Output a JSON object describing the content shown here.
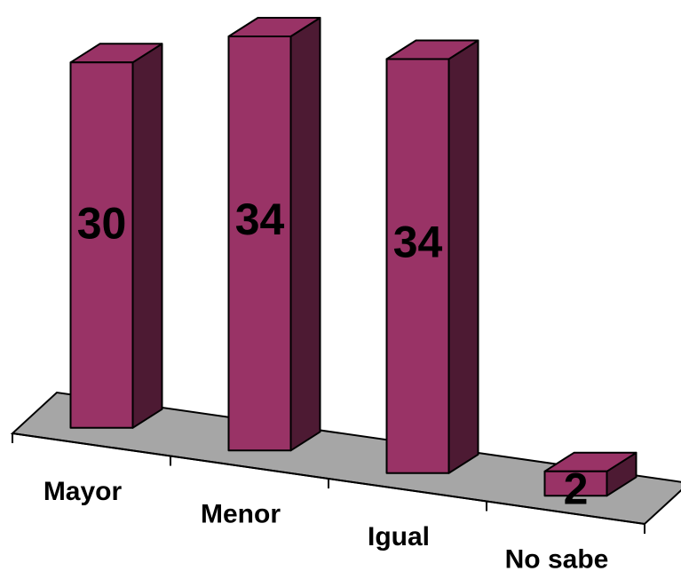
{
  "colors": {
    "bar_front": "#993366",
    "bar_side": "#4d1a33",
    "bar_top": "#993366",
    "floor": "#a6a6a6"
  },
  "chart_data": {
    "type": "bar",
    "categories": [
      "Mayor",
      "Menor",
      "Igual",
      "No sabe"
    ],
    "values": [
      30,
      34,
      34,
      2
    ],
    "ylim": [
      0,
      35
    ],
    "grid": false,
    "legend": "none",
    "three_d": true
  }
}
